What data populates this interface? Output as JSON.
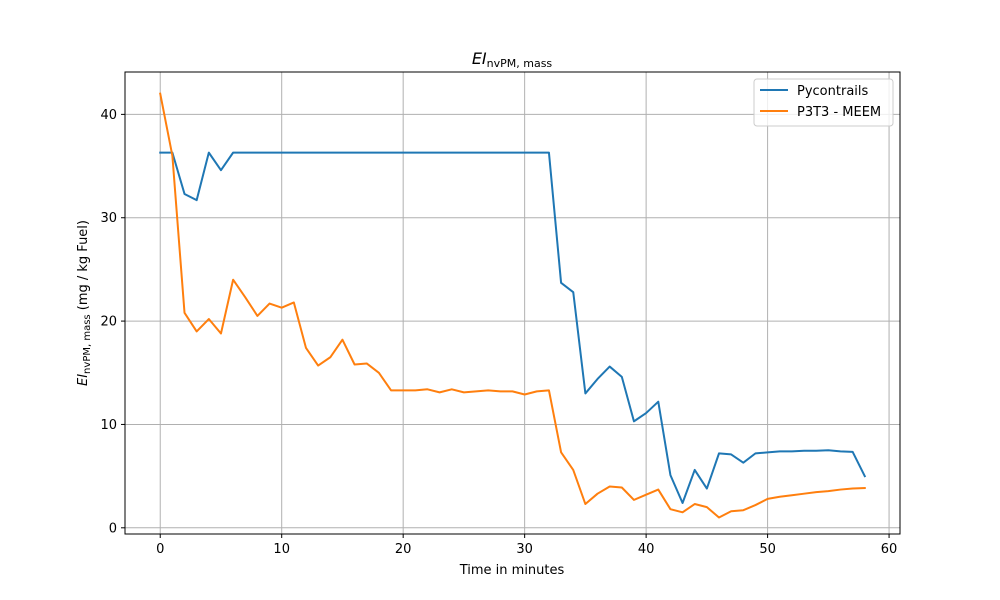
{
  "chart_data": {
    "type": "line",
    "title_main": "EI",
    "title_sub": "nvPM, mass",
    "xlabel": "Time in minutes",
    "ylabel_main": "EI",
    "ylabel_sub": "nvPM, mass",
    "ylabel_rest": " (mg / kg Fuel)",
    "xlim": [
      -2.9,
      60.9
    ],
    "ylim": [
      -0.6,
      44.1
    ],
    "xticks": [
      0,
      10,
      20,
      30,
      40,
      50,
      60
    ],
    "yticks": [
      0,
      10,
      20,
      30,
      40
    ],
    "grid": true,
    "legend_position": "top-right",
    "series": [
      {
        "name": "Pycontrails",
        "color": "#1f77b4",
        "x": [
          0,
          1,
          2,
          3,
          4,
          5,
          6,
          7,
          8,
          9,
          10,
          11,
          12,
          13,
          14,
          15,
          16,
          17,
          18,
          19,
          20,
          21,
          22,
          23,
          24,
          25,
          26,
          27,
          28,
          29,
          30,
          31,
          32,
          33,
          34,
          35,
          36,
          37,
          38,
          39,
          40,
          41,
          42,
          43,
          44,
          45,
          46,
          47,
          48,
          49,
          50,
          51,
          52,
          53,
          54,
          55,
          56,
          57,
          58
        ],
        "y": [
          36.3,
          36.3,
          32.3,
          31.7,
          36.3,
          34.6,
          36.3,
          36.3,
          36.3,
          36.3,
          36.3,
          36.3,
          36.3,
          36.3,
          36.3,
          36.3,
          36.3,
          36.3,
          36.3,
          36.3,
          36.3,
          36.3,
          36.3,
          36.3,
          36.3,
          36.3,
          36.3,
          36.3,
          36.3,
          36.3,
          36.3,
          36.3,
          36.3,
          23.7,
          22.8,
          13.0,
          14.4,
          15.6,
          14.6,
          10.3,
          11.1,
          12.2,
          5.1,
          2.4,
          5.6,
          3.8,
          7.2,
          7.1,
          6.3,
          7.2,
          7.3,
          7.4,
          7.4,
          7.45,
          7.45,
          7.5,
          7.4,
          7.35,
          5.0
        ]
      },
      {
        "name": "P3T3 - MEEM",
        "color": "#ff7f0e",
        "x": [
          0,
          1,
          2,
          3,
          4,
          5,
          6,
          7,
          8,
          9,
          10,
          11,
          12,
          13,
          14,
          15,
          16,
          17,
          18,
          19,
          20,
          21,
          22,
          23,
          24,
          25,
          26,
          27,
          28,
          29,
          30,
          31,
          32,
          33,
          34,
          35,
          36,
          37,
          38,
          39,
          40,
          41,
          42,
          43,
          44,
          45,
          46,
          47,
          48,
          49,
          50,
          51,
          52,
          53,
          54,
          55,
          56,
          57,
          58
        ],
        "y": [
          42.0,
          36.0,
          20.8,
          19.0,
          20.2,
          18.8,
          24.0,
          22.3,
          20.5,
          21.7,
          21.3,
          21.8,
          17.4,
          15.7,
          16.5,
          18.2,
          15.8,
          15.9,
          15.0,
          13.3,
          13.3,
          13.3,
          13.4,
          13.1,
          13.4,
          13.1,
          13.2,
          13.3,
          13.2,
          13.2,
          12.9,
          13.2,
          13.3,
          7.3,
          5.6,
          2.3,
          3.3,
          4.0,
          3.9,
          2.7,
          3.2,
          3.7,
          1.8,
          1.5,
          2.3,
          2.0,
          1.0,
          1.6,
          1.7,
          2.2,
          2.8,
          3.0,
          3.15,
          3.3,
          3.45,
          3.55,
          3.7,
          3.8,
          3.85
        ]
      }
    ]
  }
}
